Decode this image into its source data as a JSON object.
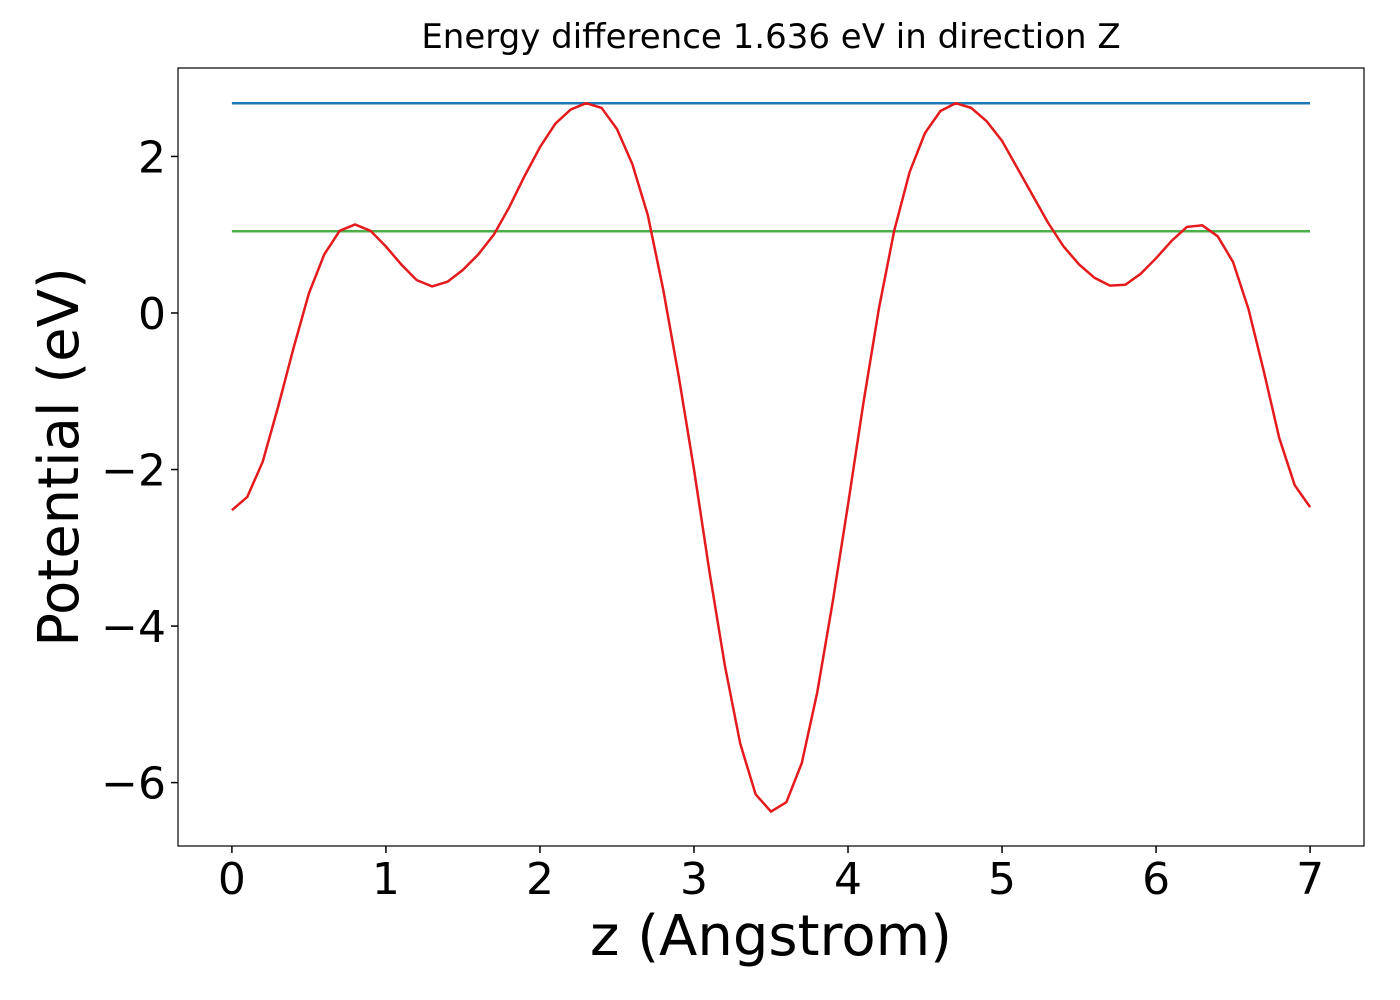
{
  "chart_data": {
    "type": "line",
    "title": "Energy difference 1.636 eV in direction Z",
    "x_label": "z (Angstrom)",
    "y_label": "Potential (eV)",
    "xlim": [
      -0.35,
      7.35
    ],
    "ylim": [
      -6.81,
      3.13
    ],
    "xticks": [
      0,
      1,
      2,
      3,
      4,
      5,
      6,
      7
    ],
    "yticks": [
      {
        "value": -6,
        "label": "−6"
      },
      {
        "value": -4,
        "label": "−4"
      },
      {
        "value": -2,
        "label": "−2"
      },
      0,
      2
    ],
    "series": [
      {
        "color": "#1f77b4",
        "x": [
          0,
          7
        ],
        "values": [
          2.68,
          2.68
        ]
      },
      {
        "color": "#4daf4a",
        "x": [
          0,
          7
        ],
        "values": [
          1.044,
          1.044
        ]
      },
      {
        "color": "#e41a1c",
        "x": [
          0,
          0.1,
          0.2,
          0.3,
          0.4,
          0.5,
          0.6,
          0.7,
          0.8,
          0.9,
          1.0,
          1.1,
          1.2,
          1.3,
          1.4,
          1.5,
          1.6,
          1.7,
          1.8,
          1.9,
          2.0,
          2.1,
          2.2,
          2.3,
          2.4,
          2.5,
          2.6,
          2.7,
          2.8,
          2.9,
          3.0,
          3.1,
          3.2,
          3.3,
          3.4,
          3.5,
          3.6,
          3.7,
          3.8,
          3.9,
          4.0,
          4.1,
          4.2,
          4.3,
          4.4,
          4.5,
          4.6,
          4.7,
          4.8,
          4.9,
          5.0,
          5.1,
          5.2,
          5.3,
          5.4,
          5.5,
          5.6,
          5.7,
          5.8,
          5.9,
          6.0,
          6.1,
          6.2,
          6.3,
          6.4,
          6.5,
          6.6,
          6.7,
          6.8,
          6.9,
          7.0
        ],
        "values": [
          -2.52,
          -2.35,
          -1.9,
          -1.2,
          -0.45,
          0.25,
          0.75,
          1.05,
          1.13,
          1.05,
          0.85,
          0.62,
          0.42,
          0.34,
          0.4,
          0.55,
          0.75,
          1.0,
          1.35,
          1.75,
          2.12,
          2.42,
          2.6,
          2.68,
          2.62,
          2.35,
          1.9,
          1.25,
          0.3,
          -0.8,
          -2.0,
          -3.3,
          -4.5,
          -5.5,
          -6.15,
          -6.37,
          -6.25,
          -5.75,
          -4.85,
          -3.7,
          -2.45,
          -1.15,
          0.05,
          1.05,
          1.8,
          2.3,
          2.58,
          2.68,
          2.62,
          2.45,
          2.2,
          1.85,
          1.5,
          1.15,
          0.85,
          0.62,
          0.45,
          0.35,
          0.36,
          0.5,
          0.7,
          0.92,
          1.1,
          1.12,
          0.98,
          0.65,
          0.05,
          -0.75,
          -1.6,
          -2.2,
          -2.48
        ]
      }
    ]
  }
}
